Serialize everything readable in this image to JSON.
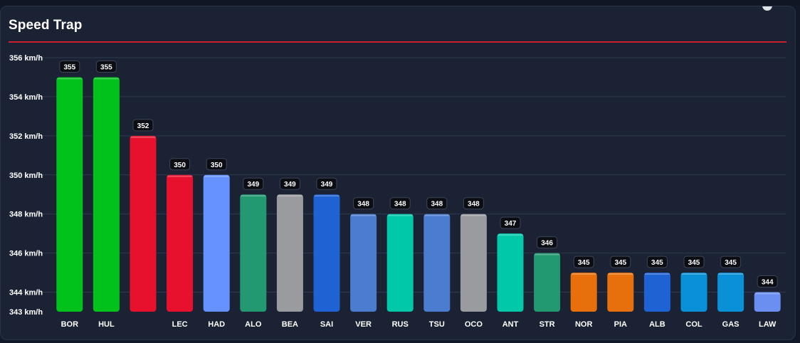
{
  "panel": {
    "title": "Speed Trap"
  },
  "chart_data": {
    "type": "bar",
    "title": "Speed Trap",
    "xlabel": "",
    "ylabel": "",
    "ylim": [
      343,
      356
    ],
    "yticks": [
      343,
      344,
      346,
      348,
      350,
      352,
      354,
      356
    ],
    "ytick_labels": [
      "343 km/h",
      "344 km/h",
      "346 km/h",
      "348 km/h",
      "350 km/h",
      "352 km/h",
      "354 km/h",
      "356 km/h"
    ],
    "grid": true,
    "categories": [
      "BOR",
      "HUL",
      "",
      "LEC",
      "HAD",
      "ALO",
      "BEA",
      "SAI",
      "VER",
      "RUS",
      "TSU",
      "OCO",
      "ANT",
      "STR",
      "NOR",
      "PIA",
      "ALB",
      "COL",
      "GAS",
      "LAW"
    ],
    "values": [
      355,
      355,
      352,
      350,
      350,
      349,
      349,
      349,
      348,
      348,
      348,
      348,
      347,
      346,
      345,
      345,
      345,
      345,
      345,
      344
    ],
    "data_labels": [
      "355",
      "355",
      "352",
      "350",
      "350",
      "349",
      "349",
      "349",
      "348",
      "348",
      "348",
      "348",
      "347",
      "346",
      "345",
      "345",
      "345",
      "345",
      "345",
      "344"
    ],
    "colors": [
      "#00c21a",
      "#00c21a",
      "#e8112d",
      "#e8112d",
      "#6692ff",
      "#229971",
      "#9a9b9e",
      "#1f62d4",
      "#4a7cd0",
      "#00c8a8",
      "#4a7cd0",
      "#9a9b9e",
      "#00c8a8",
      "#229971",
      "#e8700c",
      "#e8700c",
      "#1f62d4",
      "#0a90d6",
      "#0a90d6",
      "#6a8ff0"
    ]
  }
}
